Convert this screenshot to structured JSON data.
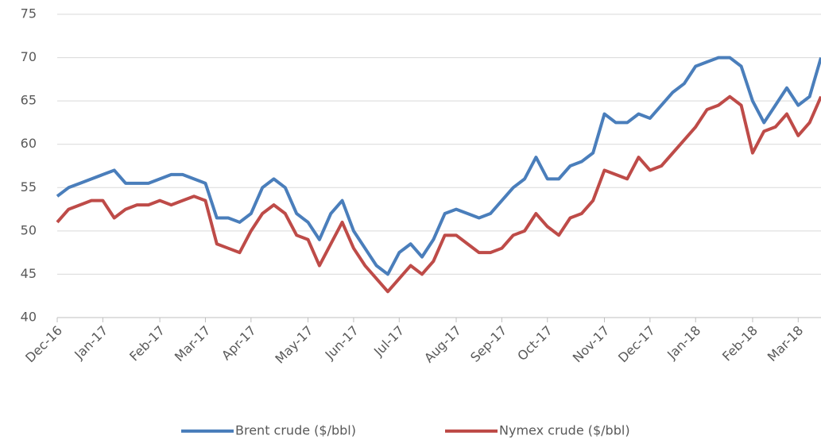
{
  "chart_data": {
    "type": "line",
    "categories": [
      "Dec-16",
      null,
      null,
      null,
      "Jan-17",
      null,
      null,
      null,
      null,
      "Feb-17",
      null,
      null,
      null,
      "Mar-17",
      null,
      null,
      null,
      "Apr-17",
      null,
      null,
      null,
      null,
      "May-17",
      null,
      null,
      null,
      "Jun-17",
      null,
      null,
      null,
      "Jul-17",
      null,
      null,
      null,
      null,
      "Aug-17",
      null,
      null,
      null,
      "Sep-17",
      null,
      null,
      null,
      "Oct-17",
      null,
      null,
      null,
      null,
      "Nov-17",
      null,
      null,
      null,
      "Dec-17",
      null,
      null,
      null,
      "Jan-18",
      null,
      null,
      null,
      null,
      "Feb-18",
      null,
      null,
      null,
      "Mar-18",
      null,
      null
    ],
    "series": [
      {
        "name": "Brent crude ($/bbl)",
        "color": "#4a7ebb",
        "values": [
          54,
          55,
          55.5,
          56,
          56.5,
          57,
          55.5,
          55.5,
          55.5,
          56,
          56.5,
          56.5,
          56,
          55.5,
          51.5,
          51.5,
          51,
          52,
          55,
          56,
          55,
          52,
          51,
          49,
          52,
          53.5,
          50,
          48,
          46,
          45,
          47.5,
          48.5,
          47,
          49,
          52,
          52.5,
          52,
          51.5,
          52,
          53.5,
          55,
          56,
          58.5,
          56,
          56,
          57.5,
          58,
          59,
          63.5,
          62.5,
          62.5,
          63.5,
          63,
          64.5,
          66,
          67,
          69,
          69.5,
          70,
          70,
          69,
          65,
          62.5,
          64.5,
          66.5,
          64.5,
          65.5,
          70
        ]
      },
      {
        "name": "Nymex crude ($/bbl)",
        "color": "#be4b48",
        "values": [
          51,
          52.5,
          53,
          53.5,
          53.5,
          51.5,
          52.5,
          53,
          53,
          53.5,
          53,
          53.5,
          54,
          53.5,
          48.5,
          48,
          47.5,
          50,
          52,
          53,
          52,
          49.5,
          49,
          46,
          48.5,
          51,
          48,
          46,
          44.5,
          43,
          44.5,
          46,
          45,
          46.5,
          49.5,
          49.5,
          48.5,
          47.5,
          47.5,
          48,
          49.5,
          50,
          52,
          50.5,
          49.5,
          51.5,
          52,
          53.5,
          57,
          56.5,
          56,
          58.5,
          57,
          57.5,
          59,
          60.5,
          62,
          64,
          64.5,
          65.5,
          64.5,
          59,
          61.5,
          62,
          63.5,
          61,
          62.5,
          65.5
        ]
      }
    ],
    "ylim": [
      40,
      75
    ],
    "yticks": [
      40,
      45,
      50,
      55,
      60,
      65,
      70,
      75
    ],
    "grid": true,
    "legend": "bottom"
  }
}
